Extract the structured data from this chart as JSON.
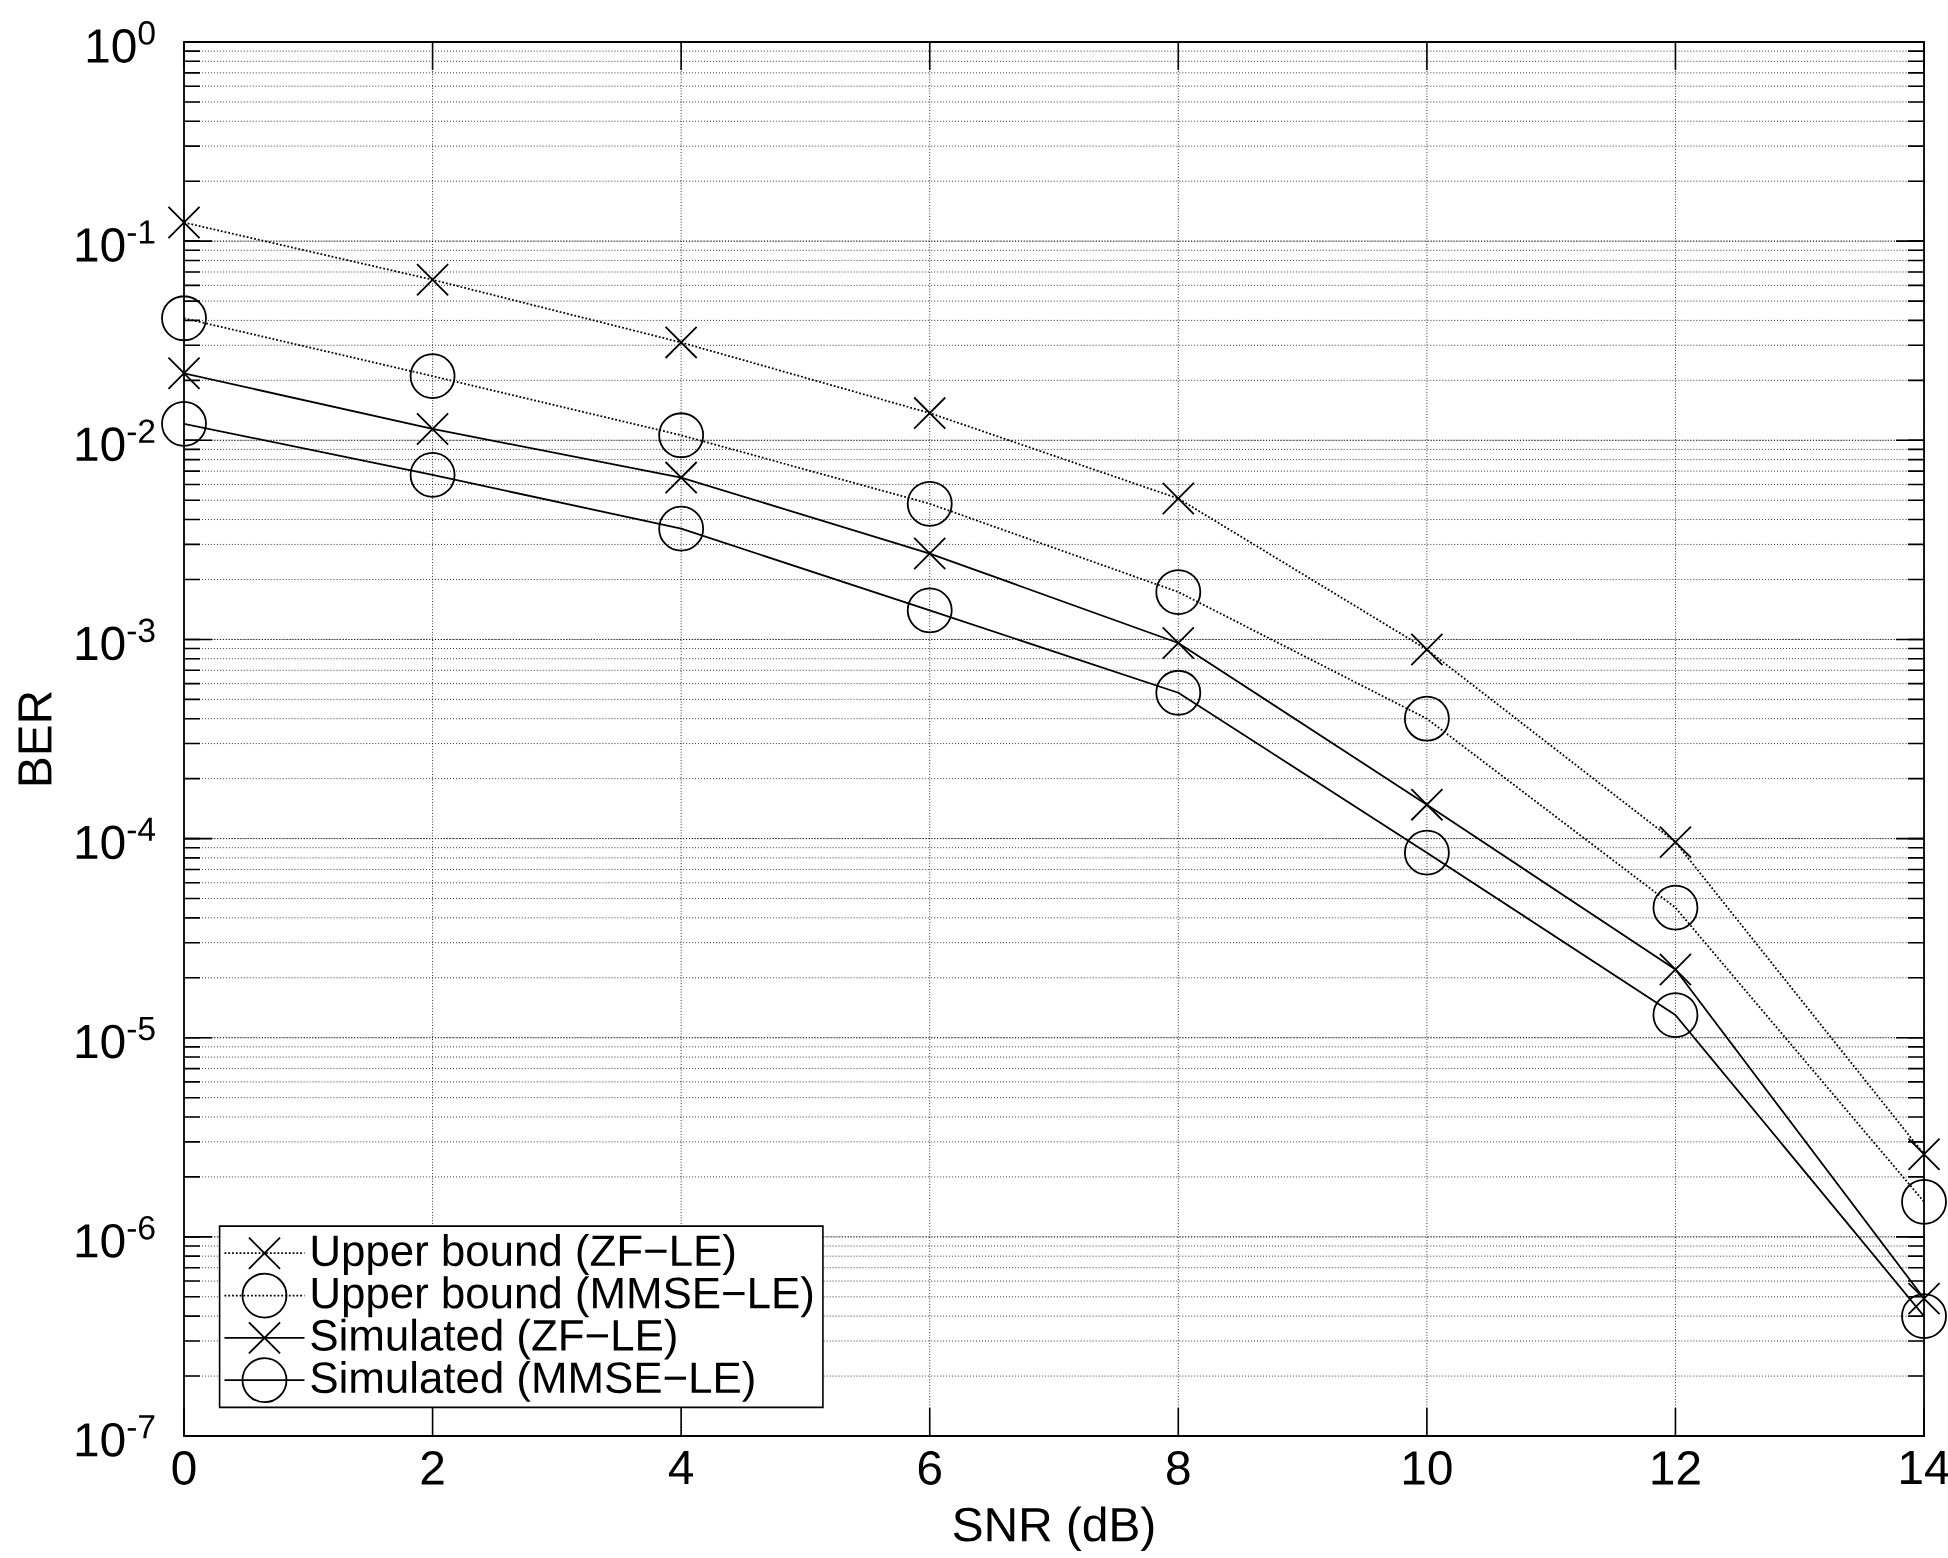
{
  "chart_data": {
    "type": "line",
    "xlabel": "SNR (dB)",
    "ylabel": "BER",
    "x": [
      0,
      2,
      4,
      6,
      8,
      10,
      12,
      14
    ],
    "xlim": [
      0,
      14
    ],
    "xticks": [
      0,
      2,
      4,
      6,
      8,
      10,
      12,
      14
    ],
    "ylim": [
      1e-07,
      1
    ],
    "log": "y",
    "yticks": [
      {
        "value": 1e-07,
        "label": "10$^{-7}$"
      },
      {
        "value": 1e-06,
        "label": "10$^{-6}$"
      },
      {
        "value": 1e-05,
        "label": "10$^{-5}$"
      },
      {
        "value": 0.0001,
        "label": "10$^{-4}$"
      },
      {
        "value": 0.001,
        "label": "10$^{-3}$"
      },
      {
        "value": 0.01,
        "label": "10$^{-2}$"
      },
      {
        "value": 0.1,
        "label": "10$^{-1}$"
      },
      {
        "value": 1,
        "label": "10$^{0}$"
      }
    ],
    "grid": true,
    "legend": "bottom left",
    "series": [
      {
        "name": "Upper bound (ZF−LE)",
        "color": "#000000",
        "marker": "cross",
        "line_style": "dotted",
        "values": [
          0.124,
          0.064,
          0.031,
          0.0137,
          0.0051,
          0.00089,
          9.6e-05,
          2.6e-06
        ]
      },
      {
        "name": "Upper bound (MMSE−LE)",
        "color": "#000000",
        "marker": "circle",
        "line_style": "dotted",
        "values": [
          0.041,
          0.021,
          0.0106,
          0.0048,
          0.00173,
          0.0004,
          4.5e-05,
          1.5e-06
        ]
      },
      {
        "name": "Simulated (ZF−LE)",
        "color": "#000000",
        "marker": "cross",
        "line_style": "solid",
        "values": [
          0.0217,
          0.0114,
          0.0065,
          0.0027,
          0.00096,
          0.000148,
          2.2e-05,
          4.9e-07
        ]
      },
      {
        "name": "Simulated (MMSE−LE)",
        "color": "#000000",
        "marker": "circle",
        "line_style": "solid",
        "values": [
          0.0121,
          0.0067,
          0.0036,
          0.0014,
          0.00054,
          8.5e-05,
          1.3e-05,
          4e-07
        ]
      }
    ]
  }
}
